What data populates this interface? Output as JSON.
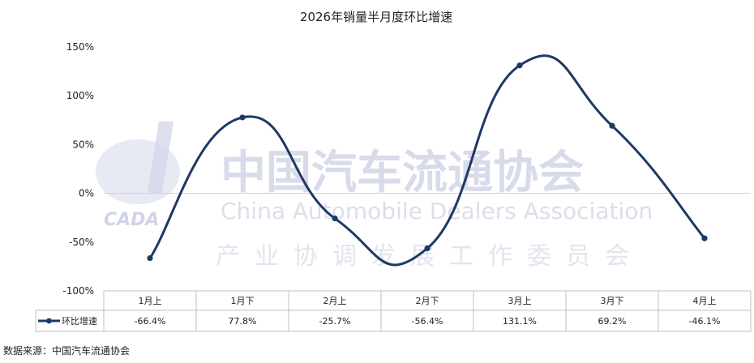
{
  "chart_data": {
    "type": "line",
    "title": "2026年销量半月度环比增速",
    "categories": [
      "1月上",
      "1月下",
      "2月上",
      "2月下",
      "3月上",
      "3月下",
      "4月上"
    ],
    "series": [
      {
        "name": "环比增速",
        "values": [
          -66.4,
          77.8,
          -25.7,
          -56.4,
          131.1,
          69.2,
          -46.1
        ],
        "labels": [
          "-66.4%",
          "77.8%",
          "-25.7%",
          "-56.4%",
          "131.1%",
          "69.2%",
          "-46.1%"
        ],
        "color": "#1f3864"
      }
    ],
    "ylim": [
      -100,
      150
    ],
    "yticks": [
      150,
      100,
      50,
      0,
      -50,
      -100
    ],
    "ytick_labels": [
      "150%",
      "100%",
      "50%",
      "0%",
      "-50%",
      "-100%"
    ],
    "smooth": true,
    "data_table": true,
    "legend_position": "left of data table"
  },
  "watermark": {
    "logo_text": "CADA",
    "org_cn": "中国汽车流通协会",
    "org_en": "China Automobile Dealers Association",
    "subtitle_cn": "产业协调发展工作委员会"
  },
  "source_note": "数据来源：中国汽车流通协会"
}
